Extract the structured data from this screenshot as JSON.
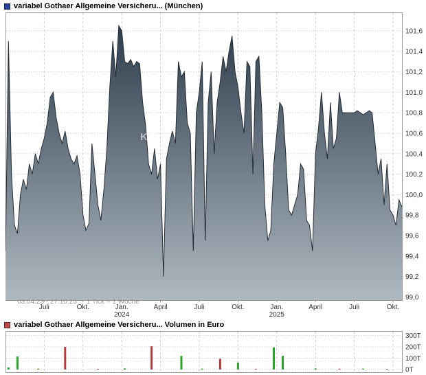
{
  "colors": {
    "frame": "#999999",
    "grid": "#cccccc",
    "line": "#232c35",
    "area_top": "#2f3e4d",
    "area_bottom": "#aeb8c0",
    "price_legend": "#2b3e9b",
    "volume_legend": "#b94a48",
    "green": "#2ca32c",
    "red": "#b43b3b",
    "axis_text": "#333333",
    "caption_text": "#9a9a9a"
  },
  "chart_data": [
    {
      "type": "area",
      "title": "variabel Gothaer Allgemeine Versicheru... (München)",
      "period": "03.04.23 - 27.10.25",
      "tick_note": "1 Tick = 1 Woche",
      "watermark": "KTI",
      "ylabel": "",
      "xlabel": "",
      "ylim": [
        98.97,
        101.78
      ],
      "y_ticks": [
        99.0,
        99.2,
        99.4,
        99.6,
        99.8,
        100.0,
        100.2,
        100.4,
        100.6,
        100.8,
        101.0,
        101.2,
        101.4,
        101.6
      ],
      "x_ticks": [
        {
          "week": 13,
          "label": "Juli"
        },
        {
          "week": 26,
          "label": "Okt."
        },
        {
          "week": 39,
          "label": "Jan.",
          "year": "2024"
        },
        {
          "week": 52,
          "label": "April"
        },
        {
          "week": 65,
          "label": "Juli"
        },
        {
          "week": 78,
          "label": "Okt."
        },
        {
          "week": 91,
          "label": "Jan.",
          "year": "2025"
        },
        {
          "week": 104,
          "label": "April"
        },
        {
          "week": 117,
          "label": "Juli"
        },
        {
          "week": 130,
          "label": "Okt."
        }
      ],
      "values": [
        99.45,
        101.5,
        100.2,
        99.7,
        99.62,
        100.0,
        100.15,
        100.05,
        100.3,
        100.2,
        100.4,
        100.3,
        100.45,
        100.55,
        100.7,
        100.95,
        101.0,
        100.75,
        100.6,
        100.5,
        100.62,
        100.45,
        100.35,
        100.3,
        100.38,
        100.2,
        99.8,
        99.65,
        99.72,
        100.5,
        100.2,
        99.9,
        99.75,
        100.05,
        100.45,
        101.05,
        101.5,
        101.15,
        101.65,
        101.6,
        101.3,
        101.28,
        101.32,
        101.25,
        101.3,
        101.28,
        100.9,
        100.68,
        100.3,
        100.2,
        100.45,
        100.15,
        100.3,
        99.2,
        100.35,
        100.5,
        100.62,
        100.5,
        101.3,
        101.15,
        101.2,
        100.7,
        100.6,
        99.45,
        100.8,
        101.0,
        101.3,
        99.55,
        100.9,
        101.2,
        100.4,
        100.9,
        101.1,
        101.35,
        101.2,
        101.4,
        101.55,
        101.2,
        101.05,
        100.8,
        100.6,
        101.3,
        101.25,
        100.2,
        101.3,
        101.35,
        100.8,
        99.9,
        99.55,
        99.65,
        100.3,
        100.6,
        100.9,
        100.85,
        100.4,
        99.85,
        99.8,
        99.9,
        100.0,
        100.3,
        100.25,
        99.75,
        99.7,
        99.45,
        100.4,
        100.65,
        101.0,
        100.6,
        100.35,
        100.9,
        100.45,
        100.55,
        101.0,
        100.8,
        100.8,
        100.8,
        100.8,
        100.8,
        100.82,
        100.8,
        100.78,
        100.8,
        100.82,
        100.8,
        100.5,
        100.2,
        100.35,
        99.9,
        100.3,
        99.85,
        99.8,
        99.7,
        99.95,
        99.88
      ]
    },
    {
      "type": "bar",
      "title": "variabel Gothaer Allgemeine Versicheru... Volumen in Euro",
      "unit": "T",
      "ymax": 300,
      "y_ticks": [
        300,
        200,
        100,
        0
      ],
      "bars": [
        {
          "week": 1,
          "value": 18,
          "color": "green"
        },
        {
          "week": 4,
          "value": 115,
          "color": "green"
        },
        {
          "week": 11,
          "value": 8,
          "color": "green"
        },
        {
          "week": 20,
          "value": 200,
          "color": "red"
        },
        {
          "week": 31,
          "value": 6,
          "color": "red"
        },
        {
          "week": 40,
          "value": 10,
          "color": "green"
        },
        {
          "week": 49,
          "value": 205,
          "color": "red"
        },
        {
          "week": 59,
          "value": 120,
          "color": "green"
        },
        {
          "week": 66,
          "value": 8,
          "color": "green"
        },
        {
          "week": 72,
          "value": 95,
          "color": "red"
        },
        {
          "week": 78,
          "value": 60,
          "color": "green"
        },
        {
          "week": 84,
          "value": 6,
          "color": "red"
        },
        {
          "week": 90,
          "value": 195,
          "color": "green"
        },
        {
          "week": 93,
          "value": 120,
          "color": "green"
        },
        {
          "week": 104,
          "value": 10,
          "color": "green"
        },
        {
          "week": 112,
          "value": 7,
          "color": "red"
        },
        {
          "week": 120,
          "value": 8,
          "color": "green"
        },
        {
          "week": 128,
          "value": 6,
          "color": "red"
        }
      ]
    }
  ]
}
